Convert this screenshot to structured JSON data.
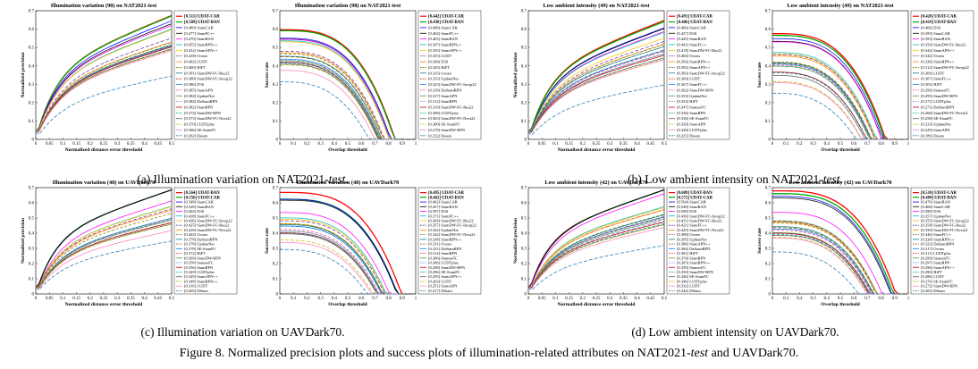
{
  "figure_caption": {
    "prefix": "Figure 8. Normalized precision plots and success plots of illumination-related attributes on NAT2021-",
    "test": "test",
    "suffix": " and UAVDark70."
  },
  "panels": [
    {
      "caption_a": "(a) Illumination variation on NAT2021-",
      "caption_test": "test",
      "caption_b": "."
    },
    {
      "caption_a": "(b) Low ambient intensity on NAT2021-",
      "caption_test": "test",
      "caption_b": "."
    },
    {
      "caption_a": "(c) Illumination variation on UAVDark70.",
      "caption_test": "",
      "caption_b": ""
    },
    {
      "caption_a": "(d) Low ambient intensity on UAVDark70.",
      "caption_test": "",
      "caption_b": ""
    }
  ],
  "chart_data": [
    {
      "type": "line",
      "kind": "precision",
      "title": "Illumination variation (98) on NAT2021-test",
      "xlabel": "Normalized distance error threshold",
      "ylabel": "Normalized precision",
      "xlim": [
        0,
        0.5
      ],
      "ylim": [
        0,
        0.7
      ],
      "x_ticks": [
        "0",
        "0.05",
        "0.1",
        "0.15",
        "0.2",
        "0.25",
        "0.3",
        "0.35",
        "0.4",
        "0.45",
        "0.5"
      ],
      "y_ticks": [
        "0",
        "0.1",
        "0.2",
        "0.3",
        "0.4",
        "0.5",
        "0.6",
        "0.7"
      ],
      "legend": [
        [
          "0.511",
          "UDAT-CAR"
        ],
        [
          "0.509",
          "UDAT-BAN"
        ],
        [
          "0.489",
          "SiamCAR"
        ],
        [
          "0.477",
          "SiamFC++"
        ],
        [
          "0.470",
          "SiamBAN"
        ],
        [
          "0.455",
          "SiamRPN++"
        ],
        [
          "0.452",
          "SiamAPN++"
        ],
        [
          "0.418",
          "Ocean"
        ],
        [
          "0.402",
          "LUDT"
        ],
        [
          "0.400",
          "HiFT"
        ],
        [
          "0.391",
          "SiamDW-FC-Res22"
        ],
        [
          "0.388",
          "SiamDW-FC-Incep22"
        ],
        [
          "0.386",
          "D3S"
        ],
        [
          "0.385",
          "SiamAPN"
        ],
        [
          "0.384",
          "UpdateNet"
        ],
        [
          "0.384",
          "DaSiamRPN"
        ],
        [
          "0.382",
          "SiamRPN"
        ],
        [
          "0.374",
          "SiamDW-RPN"
        ],
        [
          "0.373",
          "SiamDW-FC-Next22"
        ],
        [
          "0.370",
          "LUDTplus"
        ],
        [
          "0.366",
          "SE-SiamFC"
        ],
        [
          "0.262",
          "Dsiam"
        ]
      ],
      "top_two_bold": true
    },
    {
      "type": "line",
      "kind": "success",
      "title": "Illumination variation (98) on NAT2021-test",
      "xlabel": "Overlap threshold",
      "ylabel": "Success rate",
      "xlim": [
        0,
        1
      ],
      "ylim": [
        0,
        0.7
      ],
      "x_ticks": [
        "0",
        "0.1",
        "0.2",
        "0.3",
        "0.4",
        "0.5",
        "0.6",
        "0.7",
        "0.8",
        "0.9",
        "1"
      ],
      "y_ticks": [
        "0",
        "0.1",
        "0.2",
        "0.3",
        "0.4",
        "0.5",
        "0.6",
        "0.7"
      ],
      "legend": [
        [
          "0.442",
          "UDAT-CAR"
        ],
        [
          "0.438",
          "UDAT-BAN"
        ],
        [
          "0.408",
          "SiamCAR"
        ],
        [
          "0.404",
          "SiamFC++"
        ],
        [
          "0.403",
          "SiamBAN"
        ],
        [
          "0.397",
          "SiamRPN++"
        ],
        [
          "0.393",
          "SiamAPN++"
        ],
        [
          "0.355",
          "LUDT"
        ],
        [
          "0.349",
          "D3S"
        ],
        [
          "0.345",
          "HiFT"
        ],
        [
          "0.335",
          "Ocean"
        ],
        [
          "0.333",
          "UpdateNet"
        ],
        [
          "0.323",
          "SiamDW-FC-Incep22"
        ],
        [
          "0.318",
          "DaSiamRPN"
        ],
        [
          "0.317",
          "SiamAPN"
        ],
        [
          "0.312",
          "SiamRPN"
        ],
        [
          "0.310",
          "SiamDW-FC-Res22"
        ],
        [
          "0.308",
          "LUDTplus"
        ],
        [
          "0.303",
          "SiamDW-FC-Next22"
        ],
        [
          "0.300",
          "SE-SiamFC"
        ],
        [
          "0.278",
          "SiamDW-RPN"
        ],
        [
          "0.232",
          "Dsiam"
        ]
      ],
      "top_two_bold": true
    },
    {
      "type": "line",
      "kind": "precision",
      "title": "Low ambient intensity (49) on NAT2021-test",
      "xlabel": "Normalized distance error threshold",
      "ylabel": "Normalized precision",
      "xlim": [
        0,
        0.5
      ],
      "ylim": [
        0,
        0.7
      ],
      "x_ticks": [
        "0",
        "0.05",
        "0.1",
        "0.15",
        "0.2",
        "0.25",
        "0.3",
        "0.35",
        "0.4",
        "0.45",
        "0.5"
      ],
      "y_ticks": [
        "0",
        "0.1",
        "0.2",
        "0.3",
        "0.4",
        "0.5",
        "0.6",
        "0.7"
      ],
      "legend": [
        [
          "0.491",
          "UDAT-CAR"
        ],
        [
          "0.486",
          "UDAT-BAN"
        ],
        [
          "0.460",
          "SiamCAR"
        ],
        [
          "0.457",
          "D3S"
        ],
        [
          "0.445",
          "SiamBAN"
        ],
        [
          "0.441",
          "SiamFC++"
        ],
        [
          "0.418",
          "SiamDW-FC-Res22"
        ],
        [
          "0.404",
          "Ocean"
        ],
        [
          "0.393",
          "SiamRPN++"
        ],
        [
          "0.392",
          "SiamAPN++"
        ],
        [
          "0.383",
          "SiamDW-FC-Incep22"
        ],
        [
          "0.369",
          "LUDT"
        ],
        [
          "0.367",
          "SiamFC++"
        ],
        [
          "0.362",
          "SiamDW-RPN"
        ],
        [
          "0.353",
          "UpdateNet"
        ],
        [
          "0.352",
          "HiFT"
        ],
        [
          "0.347",
          "SiamesFC"
        ],
        [
          "0.336",
          "SiamRPN"
        ],
        [
          "0.336",
          "SE-SiamFC"
        ],
        [
          "0.330",
          "SiamAPN"
        ],
        [
          "0.328",
          "LUDTplus"
        ],
        [
          "0.225",
          "Dsiam"
        ]
      ],
      "top_two_bold": true
    },
    {
      "type": "line",
      "kind": "success",
      "title": "Low ambient intensity (49) on NAT2021-test",
      "xlabel": "Overlap threshold",
      "ylabel": "Success rate",
      "xlim": [
        0,
        1
      ],
      "ylim": [
        0,
        0.7
      ],
      "x_ticks": [
        "0",
        "0.1",
        "0.2",
        "0.3",
        "0.4",
        "0.5",
        "0.6",
        "0.7",
        "0.8",
        "0.9",
        "1"
      ],
      "y_ticks": [
        "0",
        "0.1",
        "0.2",
        "0.3",
        "0.4",
        "0.5",
        "0.6",
        "0.7"
      ],
      "legend": [
        [
          "0.426",
          "UDAT-CAR"
        ],
        [
          "0.419",
          "UDAT-BAN"
        ],
        [
          "0.406",
          "D3S"
        ],
        [
          "0.395",
          "SiamCAR"
        ],
        [
          "0.393",
          "SiamBAN"
        ],
        [
          "0.350",
          "SiamDW-FC-Res22"
        ],
        [
          "0.344",
          "SiamAPN++"
        ],
        [
          "0.342",
          "Ocean"
        ],
        [
          "0.336",
          "SiamRPN++"
        ],
        [
          "0.312",
          "SiamDW-FC-Incep22"
        ],
        [
          "0.309",
          "LUDT"
        ],
        [
          "0.307",
          "SiamFC++"
        ],
        [
          "0.303",
          "HiFT"
        ],
        [
          "0.299",
          "SiamesFC"
        ],
        [
          "0.295",
          "SiamDW-RPN"
        ],
        [
          "0.271",
          "LUDTplus"
        ],
        [
          "0.271",
          "DaSiamRPN"
        ],
        [
          "0.268",
          "SiamDW-FC-Next22"
        ],
        [
          "0.258",
          "SE-SiamFC"
        ],
        [
          "0.233",
          "UpdateNet"
        ],
        [
          "0.229",
          "SiamAPN"
        ],
        [
          "0.186",
          "Dsiam"
        ]
      ],
      "top_two_bold": true
    },
    {
      "type": "line",
      "kind": "precision",
      "title": "Illumination variation (48) on UAVDark70",
      "xlabel": "Normalized distance error threshold",
      "ylabel": "Normalized precision",
      "xlim": [
        0,
        0.5
      ],
      "ylim": [
        0,
        0.7
      ],
      "x_ticks": [
        "0",
        "0.05",
        "0.1",
        "0.15",
        "0.2",
        "0.25",
        "0.3",
        "0.35",
        "0.4",
        "0.45",
        "0.5"
      ],
      "y_ticks": [
        "0",
        "0.1",
        "0.2",
        "0.3",
        "0.4",
        "0.5",
        "0.6",
        "0.7"
      ],
      "legend": [
        [
          "0.564",
          "UDAT-BAN"
        ],
        [
          "0.556",
          "UDAT-CAR"
        ],
        [
          "0.548",
          "SiamCAR"
        ],
        [
          "0.528",
          "SiamBAN"
        ],
        [
          "0.464",
          "D3S"
        ],
        [
          "0.438",
          "SiamFC++"
        ],
        [
          "0.436",
          "SiamDW-FC-Incep22"
        ],
        [
          "0.425",
          "SiamDW-FC-Res22"
        ],
        [
          "0.418",
          "SiamDW-FC-Next22"
        ],
        [
          "0.402",
          "Ocean"
        ],
        [
          "0.378",
          "DaSiamRPN"
        ],
        [
          "0.378",
          "UpdateNet"
        ],
        [
          "0.378",
          "SE-SiamFC"
        ],
        [
          "0.372",
          "HiFT"
        ],
        [
          "0.369",
          "SiamDW-RPN"
        ],
        [
          "0.358",
          "SiamesFC"
        ],
        [
          "0.356",
          "SiamRPN"
        ],
        [
          "0.349",
          "LUDTplus"
        ],
        [
          "0.349",
          "SiamAPN++"
        ],
        [
          "0.348",
          "SiamRPN++"
        ],
        [
          "0.316",
          "LUDT"
        ],
        [
          "0.265",
          "DSiam"
        ]
      ],
      "top_two_bold": true
    },
    {
      "type": "line",
      "kind": "success",
      "title": "Illumination variation (48) on UAVDark70",
      "xlabel": "Overlap threshold",
      "ylabel": "Success rate",
      "xlim": [
        0,
        1
      ],
      "ylim": [
        0,
        0.7
      ],
      "x_ticks": [
        "0",
        "0.1",
        "0.2",
        "0.3",
        "0.4",
        "0.5",
        "0.6",
        "0.7",
        "0.8",
        "0.9",
        "1"
      ],
      "y_ticks": [
        "0",
        "0.1",
        "0.2",
        "0.3",
        "0.4",
        "0.5",
        "0.6",
        "0.7"
      ],
      "legend": [
        [
          "0.495",
          "UDAT-CAR"
        ],
        [
          "0.462",
          "UDAT-BAN"
        ],
        [
          "0.462",
          "SiamCAR"
        ],
        [
          "0.457",
          "SiamBAN"
        ],
        [
          "0.397",
          "D3S"
        ],
        [
          "0.371",
          "SiamFC++"
        ],
        [
          "0.364",
          "SiamDW-FC-Res22"
        ],
        [
          "0.357",
          "SiamDW-FC-Incep22"
        ],
        [
          "0.342",
          "UpdateNet"
        ],
        [
          "0.342",
          "SiamDW-FC-Next22"
        ],
        [
          "0.338",
          "SiamRPN++"
        ],
        [
          "0.331",
          "Ocean"
        ],
        [
          "0.331",
          "DaSiamRPN"
        ],
        [
          "0.314",
          "SiamRPN"
        ],
        [
          "0.306",
          "SiamesFC"
        ],
        [
          "0.306",
          "LUDTplus"
        ],
        [
          "0.298",
          "SiamDW-RPN"
        ],
        [
          "0.296",
          "SE-SiamFC"
        ],
        [
          "0.293",
          "SiamAPN++"
        ],
        [
          "0.263",
          "LUDT"
        ],
        [
          "0.251",
          "SiamAPN"
        ],
        [
          "0.217",
          "DSiam"
        ]
      ],
      "top_two_bold": true
    },
    {
      "type": "line",
      "kind": "precision",
      "title": "Low ambient intensity (42) on UAVDark70",
      "xlabel": "Normalized distance error threshold",
      "ylabel": "Normalized precision",
      "xlim": [
        0,
        0.5
      ],
      "ylim": [
        0,
        0.7
      ],
      "x_ticks": [
        "0",
        "0.05",
        "0.1",
        "0.15",
        "0.2",
        "0.25",
        "0.3",
        "0.35",
        "0.4",
        "0.45",
        "0.5"
      ],
      "y_ticks": [
        "0",
        "0.1",
        "0.2",
        "0.3",
        "0.4",
        "0.5",
        "0.6",
        "0.7"
      ],
      "legend": [
        [
          "0.609",
          "UDAT-BAN"
        ],
        [
          "0.572",
          "UDAT-CAR"
        ],
        [
          "0.564",
          "SiamCAR"
        ],
        [
          "0.548",
          "SiamBAN"
        ],
        [
          "0.500",
          "D3S"
        ],
        [
          "0.436",
          "SiamDW-FC-Incep22"
        ],
        [
          "0.431",
          "SiamDW-FC-Res22"
        ],
        [
          "0.421",
          "SiamFC++"
        ],
        [
          "0.420",
          "SiamDW-FC-Next22"
        ],
        [
          "0.398",
          "Ocean"
        ],
        [
          "0.395",
          "UpdateNet"
        ],
        [
          "0.386",
          "SiamAPN++"
        ],
        [
          "0.384",
          "DaSiamRPN"
        ],
        [
          "0.381",
          "HiFT"
        ],
        [
          "0.374",
          "SiamRPN"
        ],
        [
          "0.365",
          "SiamRPN++"
        ],
        [
          "0.359",
          "SiamesFC"
        ],
        [
          "0.350",
          "SiamDW-RPN"
        ],
        [
          "0.346",
          "SE-SiamFC"
        ],
        [
          "0.346",
          "LUDTplus"
        ],
        [
          "0.332",
          "LUDT"
        ],
        [
          "0.242",
          "DSiam"
        ]
      ],
      "top_two_bold": true
    },
    {
      "type": "line",
      "kind": "success",
      "title": "Low ambient intensity (42) on UAVDark70",
      "xlabel": "Overlap threshold",
      "ylabel": "Success rate",
      "xlim": [
        0,
        1
      ],
      "ylim": [
        0,
        0.7
      ],
      "x_ticks": [
        "0",
        "0.1",
        "0.2",
        "0.3",
        "0.4",
        "0.5",
        "0.6",
        "0.7",
        "0.8",
        "0.9",
        "1"
      ],
      "y_ticks": [
        "0",
        "0.1",
        "0.2",
        "0.3",
        "0.4",
        "0.5",
        "0.6",
        "0.7"
      ],
      "legend": [
        [
          "0.510",
          "UDAT-CAR"
        ],
        [
          "0.489",
          "UDAT-BAN"
        ],
        [
          "0.476",
          "SiamBAN"
        ],
        [
          "0.468",
          "SiamCAR"
        ],
        [
          "0.398",
          "D3S"
        ],
        [
          "0.357",
          "UpdateNet"
        ],
        [
          "0.355",
          "SiamDW-FC-Incep22"
        ],
        [
          "0.354",
          "SiamDW-FC-Res22"
        ],
        [
          "0.350",
          "SiamDW-FC-Next22"
        ],
        [
          "0.346",
          "SiamFC++"
        ],
        [
          "0.328",
          "SiamRPN++"
        ],
        [
          "0.323",
          "DaSiamRPN"
        ],
        [
          "0.317",
          "Ocean"
        ],
        [
          "0.311",
          "LUDTplus"
        ],
        [
          "0.299",
          "SiamesFC"
        ],
        [
          "0.297",
          "SiamRPN"
        ],
        [
          "0.296",
          "SiamAPN++"
        ],
        [
          "0.290",
          "HiFT"
        ],
        [
          "0.286",
          "LUDT"
        ],
        [
          "0.276",
          "SE-SiamFC"
        ],
        [
          "0.272",
          "SiamDW-RPN"
        ],
        [
          "0.205",
          "DSiam"
        ]
      ],
      "top_two_bold": true
    }
  ],
  "series_colors": [
    "#ff0000",
    "#00aa00",
    "#0000ff",
    "#000000",
    "#ff00ff",
    "#00c0c0",
    "#ffc000",
    "#7030a0",
    "#ff8000",
    "#808000",
    "#008080",
    "#a05000",
    "#0080ff",
    "#ff4080",
    "#40a040",
    "#8080ff",
    "#c00000",
    "#00a0a0",
    "#606060",
    "#c0c000",
    "#ff80c0",
    "#1f77b4"
  ]
}
